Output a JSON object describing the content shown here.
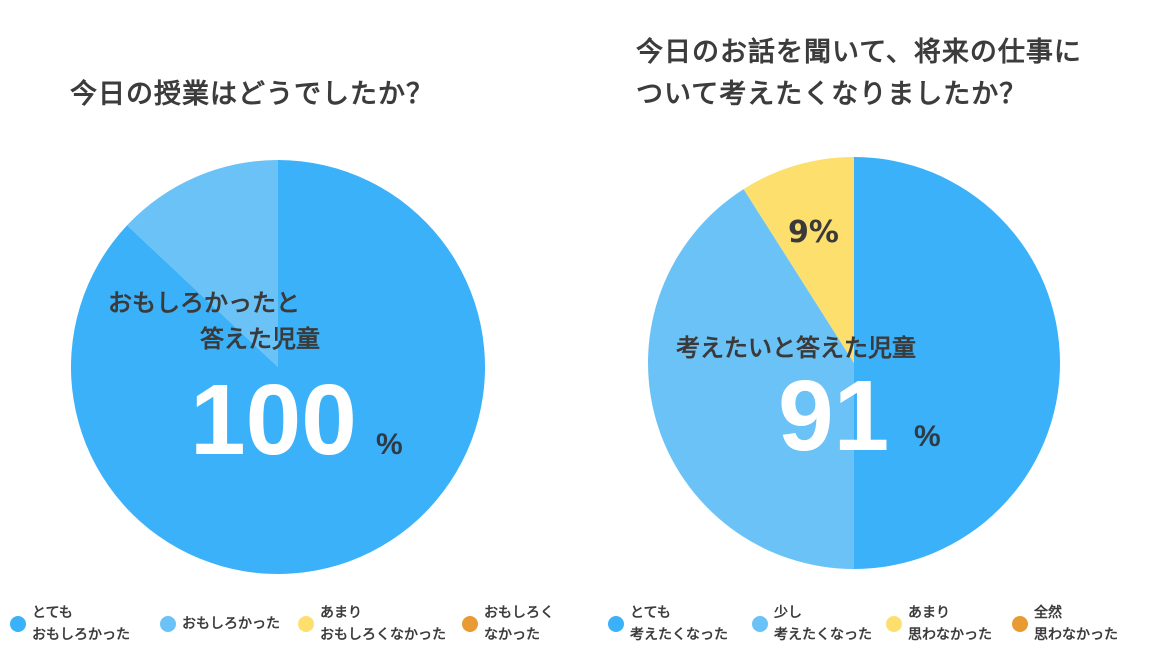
{
  "colors": {
    "very": "#3bb1f9",
    "some": "#6ac2f6",
    "notmuch": "#fddf6e",
    "notatall": "#e99b33"
  },
  "chart_data": [
    {
      "type": "pie",
      "title": "今日の授業はどうでしたか？",
      "categories": [
        "とても\nおもしろかった",
        "おもしろかった",
        "あまり\nおもしろくなかった",
        "おもしろく\nなかった"
      ],
      "values": [
        87,
        13,
        0,
        0
      ],
      "legend": "bottom",
      "annotation": {
        "label_line1": "おもしろかったと",
        "label_line2": "答えた児童",
        "value": "100",
        "unit": "%"
      }
    },
    {
      "type": "pie",
      "title_line1": "今日のお話を聞いて、将来の仕事に",
      "title_line2": "ついて考えたくなりましたか？",
      "categories": [
        "とても\n考えたくなった",
        "少し\n考えたくなった",
        "あまり\n思わなかった",
        "全然\n思わなかった"
      ],
      "values": [
        50,
        41,
        9,
        0
      ],
      "slice_labels": {
        "notmuch": "9%"
      },
      "legend": "bottom",
      "annotation": {
        "label": "考えたいと答えた児童",
        "value": "91",
        "unit": "%"
      }
    }
  ]
}
